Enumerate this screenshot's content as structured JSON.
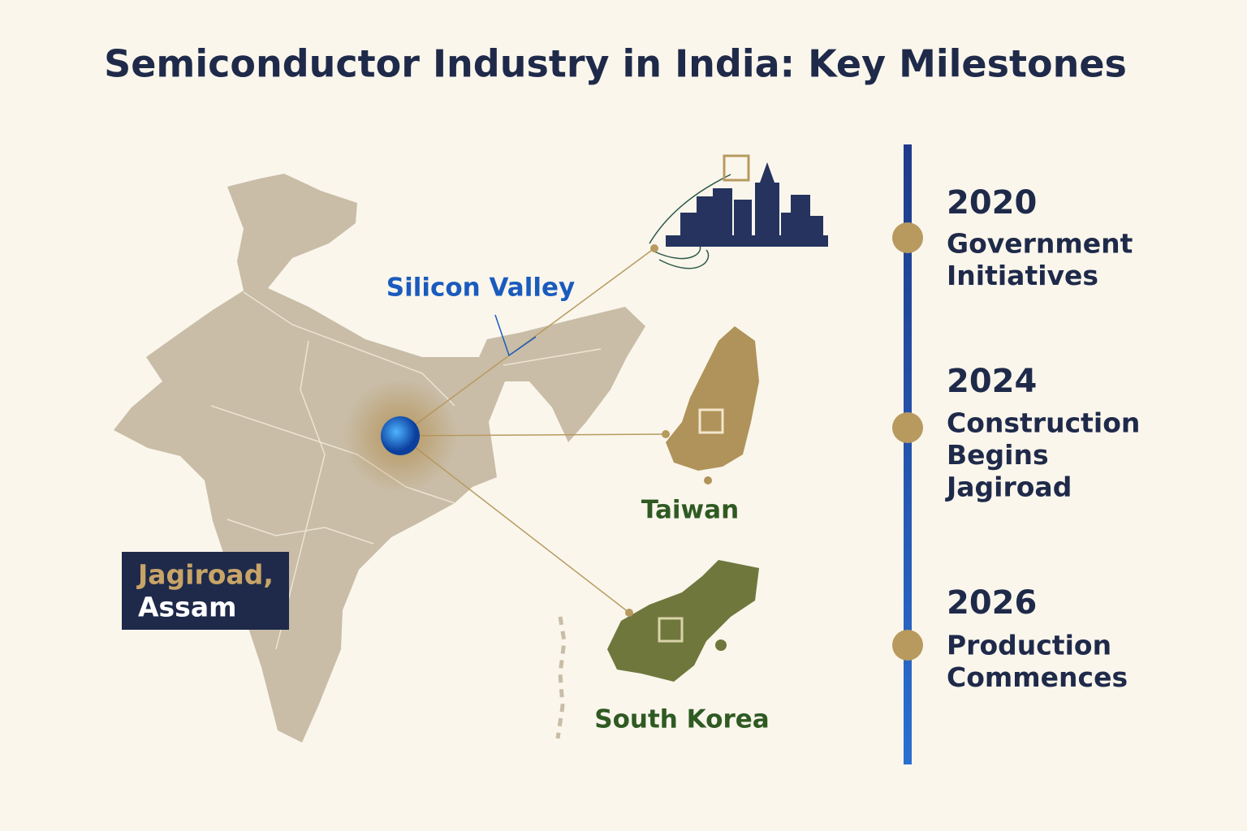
{
  "header": {
    "title": "Semiconductor Industry in India: Key Milestones"
  },
  "map": {
    "labels": {
      "silicon_valley": "Silicon Valley",
      "taiwan": "Taiwan",
      "south_korea": "South Korea"
    },
    "location_box": {
      "lines": [
        "Jagiroad,",
        "Assam"
      ]
    }
  },
  "timeline": {
    "items": [
      {
        "year": "2020",
        "lines": [
          "Government",
          "Initiatives"
        ]
      },
      {
        "year": "2024",
        "lines": [
          "Construction",
          "Begins",
          "Jagiroad"
        ]
      },
      {
        "year": "2026",
        "lines": [
          "Production",
          "Commences"
        ]
      }
    ]
  }
}
